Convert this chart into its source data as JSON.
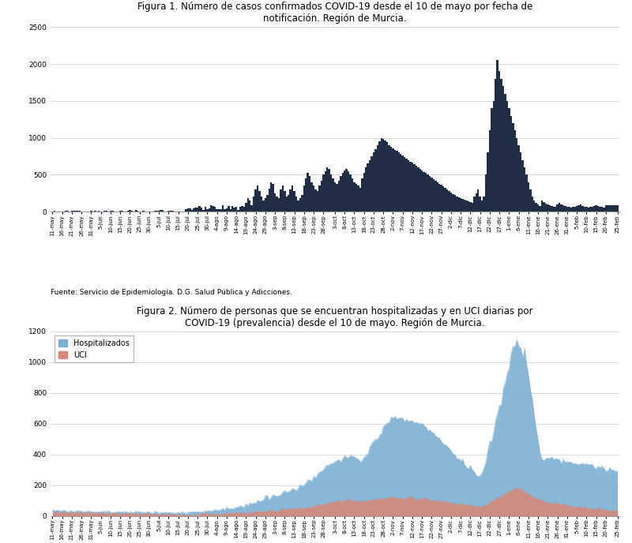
{
  "title1": "Figura 1. Número de casos confirmados COVID-19 desde el 10 de mayo por fecha de\nnotificación. Región de Murcia.",
  "title2": "Figura 2. Número de personas que se encuentran hospitalizadas y en UCI diarias por\nCOVID-19 (prevalencia) desde el 10 de mayo. Región de Murcia.",
  "source_text": "Fuente: Servicio de Epidemiología. D.G. Salud Pública y Adicciones.",
  "bar_color": "#1f2d45",
  "hosp_color": "#7cafd4",
  "uci_color": "#d4897a",
  "bg_color": "#ffffff",
  "ylim1": [
    0,
    2500
  ],
  "ylim2": [
    0,
    1200
  ],
  "yticks1": [
    0,
    500,
    1000,
    1500,
    2000,
    2500
  ],
  "yticks2": [
    0,
    200,
    400,
    600,
    800,
    1000,
    1200
  ],
  "x_labels": [
    "11-may",
    "16-may",
    "21-may",
    "26-may",
    "31-may",
    "5-jun",
    "10-jun",
    "15-jun",
    "20-jun",
    "25-jun",
    "30-jun",
    "5-jul",
    "10-jul",
    "15-jul",
    "20-jul",
    "25-jul",
    "30-jul",
    "4-ago",
    "9-ago",
    "14-ago",
    "19-ago",
    "24-ago",
    "29-ago",
    "3-sep",
    "8-sep",
    "13-sep",
    "18-sep",
    "23-sep",
    "28-sep",
    "3-oct",
    "8-oct",
    "13-oct",
    "18-oct",
    "23-oct",
    "28-oct",
    "2-nov",
    "7-nov",
    "12-nov",
    "17-nov",
    "22-nov",
    "27-nov",
    "2-dic",
    "7-dic",
    "12-dic",
    "17-dic",
    "22-dic",
    "27-dic",
    "1-ene",
    "6-ene",
    "11-ene",
    "16-ene",
    "21-ene",
    "26-ene",
    "31-ene",
    "5-feb",
    "10-feb",
    "15-feb",
    "20-feb",
    "25-feb"
  ]
}
